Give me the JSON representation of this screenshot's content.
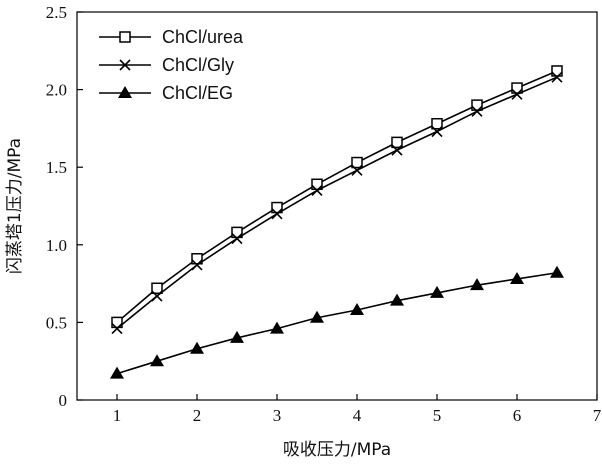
{
  "chart_data": {
    "type": "line",
    "xlabel": "吸收压力/MPa",
    "ylabel": "闪蒸塔1压力/MPa",
    "xlim": [
      0.5,
      7
    ],
    "ylim": [
      0,
      2.5
    ],
    "x_ticks": [
      1,
      2,
      3,
      4,
      5,
      6,
      7
    ],
    "y_ticks": [
      0,
      0.5,
      1.0,
      1.5,
      2.0,
      2.5
    ],
    "x_tick_labels": [
      "1",
      "2",
      "3",
      "4",
      "5",
      "6",
      "7"
    ],
    "y_tick_labels": [
      "0",
      "0.5",
      "1.0",
      "1.5",
      "2.0",
      "2.5"
    ],
    "grid": false,
    "legend_position": "top-left",
    "x": [
      1,
      1.5,
      2,
      2.5,
      3,
      3.5,
      4,
      4.5,
      5,
      5.5,
      6,
      6.5
    ],
    "series": [
      {
        "name": "ChCl/urea",
        "marker": "square-open",
        "values": [
          0.5,
          0.72,
          0.91,
          1.08,
          1.24,
          1.39,
          1.53,
          1.66,
          1.78,
          1.9,
          2.01,
          2.12
        ]
      },
      {
        "name": "ChCl/Gly",
        "marker": "x",
        "values": [
          0.46,
          0.67,
          0.87,
          1.04,
          1.2,
          1.35,
          1.48,
          1.61,
          1.73,
          1.86,
          1.97,
          2.08
        ]
      },
      {
        "name": "ChCl/EG",
        "marker": "triangle-filled",
        "values": [
          0.17,
          0.25,
          0.33,
          0.4,
          0.46,
          0.53,
          0.58,
          0.64,
          0.69,
          0.74,
          0.78,
          0.82
        ]
      }
    ],
    "colors": {
      "line": "#000000",
      "axis": "#000000"
    }
  }
}
